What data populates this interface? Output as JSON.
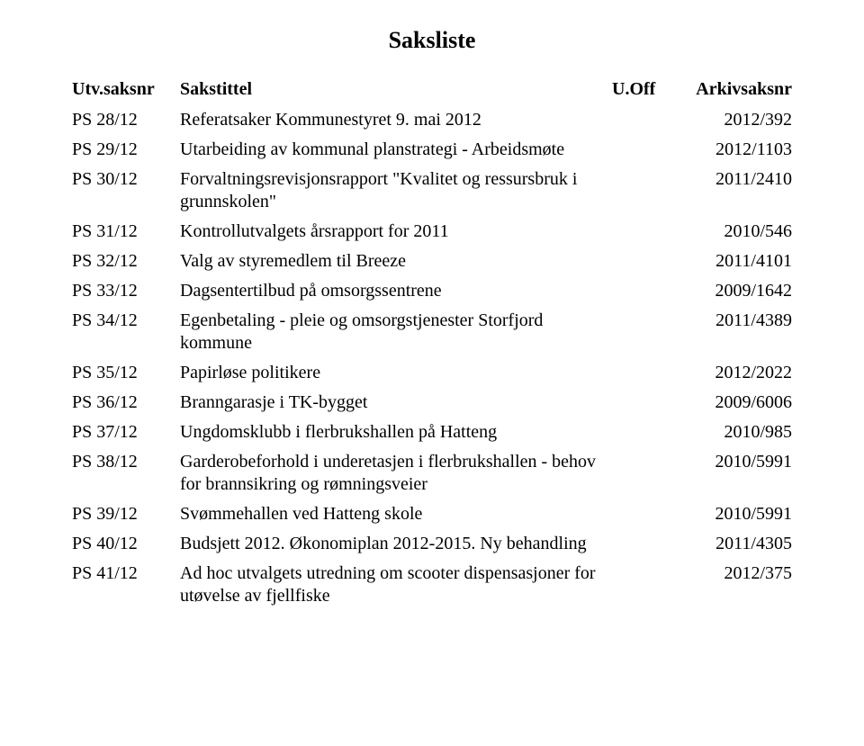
{
  "title": "Saksliste",
  "headers": {
    "saksnr": "Utv.saksnr",
    "tittel": "Sakstittel",
    "uoff": "U.Off",
    "arkiv": "Arkivsaksnr"
  },
  "rows": [
    {
      "saksnr": "PS 28/12",
      "tittel": "Referatsaker Kommunestyret 9. mai 2012",
      "uoff": "",
      "arkiv": "2012/392"
    },
    {
      "saksnr": "PS 29/12",
      "tittel": "Utarbeiding av kommunal planstrategi - Arbeidsmøte",
      "uoff": "",
      "arkiv": "2012/1103"
    },
    {
      "saksnr": "PS 30/12",
      "tittel": "Forvaltningsrevisjonsrapport \"Kvalitet og ressursbruk i grunnskolen\"",
      "uoff": "",
      "arkiv": "2011/2410"
    },
    {
      "saksnr": "PS 31/12",
      "tittel": "Kontrollutvalgets årsrapport for 2011",
      "uoff": "",
      "arkiv": "2010/546"
    },
    {
      "saksnr": "PS 32/12",
      "tittel": "Valg av styremedlem til Breeze",
      "uoff": "",
      "arkiv": "2011/4101"
    },
    {
      "saksnr": "PS 33/12",
      "tittel": "Dagsentertilbud på omsorgssentrene",
      "uoff": "",
      "arkiv": "2009/1642"
    },
    {
      "saksnr": "PS 34/12",
      "tittel": "Egenbetaling - pleie og omsorgstjenester Storfjord kommune",
      "uoff": "",
      "arkiv": "2011/4389"
    },
    {
      "saksnr": "PS 35/12",
      "tittel": "Papirløse politikere",
      "uoff": "",
      "arkiv": "2012/2022"
    },
    {
      "saksnr": "PS 36/12",
      "tittel": "Branngarasje i TK-bygget",
      "uoff": "",
      "arkiv": "2009/6006"
    },
    {
      "saksnr": "PS 37/12",
      "tittel": "Ungdomsklubb i flerbrukshallen på Hatteng",
      "uoff": "",
      "arkiv": "2010/985"
    },
    {
      "saksnr": "PS 38/12",
      "tittel": "Garderobeforhold i underetasjen i flerbrukshallen - behov for brannsikring og rømningsveier",
      "uoff": "",
      "arkiv": "2010/5991"
    },
    {
      "saksnr": "PS 39/12",
      "tittel": "Svømmehallen ved Hatteng skole",
      "uoff": "",
      "arkiv": "2010/5991"
    },
    {
      "saksnr": "PS 40/12",
      "tittel": "Budsjett 2012. Økonomiplan 2012-2015. Ny behandling",
      "uoff": "",
      "arkiv": "2011/4305"
    },
    {
      "saksnr": "PS 41/12",
      "tittel": "Ad hoc utvalgets utredning om scooter dispensasjoner for utøvelse av fjellfiske",
      "uoff": "",
      "arkiv": "2012/375"
    }
  ]
}
